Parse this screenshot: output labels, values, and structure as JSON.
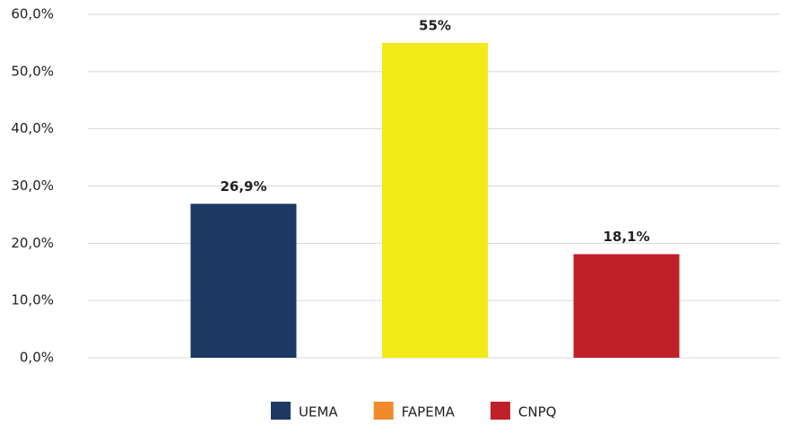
{
  "chart_data": {
    "type": "bar",
    "categories": [
      null
    ],
    "series": [
      {
        "name": "UEMA",
        "color": "#1e3864",
        "legend_color": "#1e3864",
        "values": [
          26.9
        ],
        "value_labels": [
          "26,9%"
        ]
      },
      {
        "name": "FAPEMA",
        "color": "#f2e918",
        "legend_color": "#f08a2c",
        "values": [
          55
        ],
        "value_labels": [
          "55%"
        ]
      },
      {
        "name": "CNPQ",
        "color": "#c0202a",
        "legend_color": "#c0202a",
        "values": [
          18.1
        ],
        "value_labels": [
          "18,1%"
        ]
      }
    ],
    "ylim": [
      0,
      60
    ],
    "yticks": [
      {
        "value": 0,
        "label": "0,0%"
      },
      {
        "value": 10,
        "label": "10,0%"
      },
      {
        "value": 20,
        "label": "20,0%"
      },
      {
        "value": 30,
        "label": "30,0%"
      },
      {
        "value": 40,
        "label": "40,0%"
      },
      {
        "value": 50,
        "label": "50,0%"
      },
      {
        "value": 60,
        "label": "60,0%"
      }
    ],
    "grid": true,
    "legend": "bottom"
  }
}
